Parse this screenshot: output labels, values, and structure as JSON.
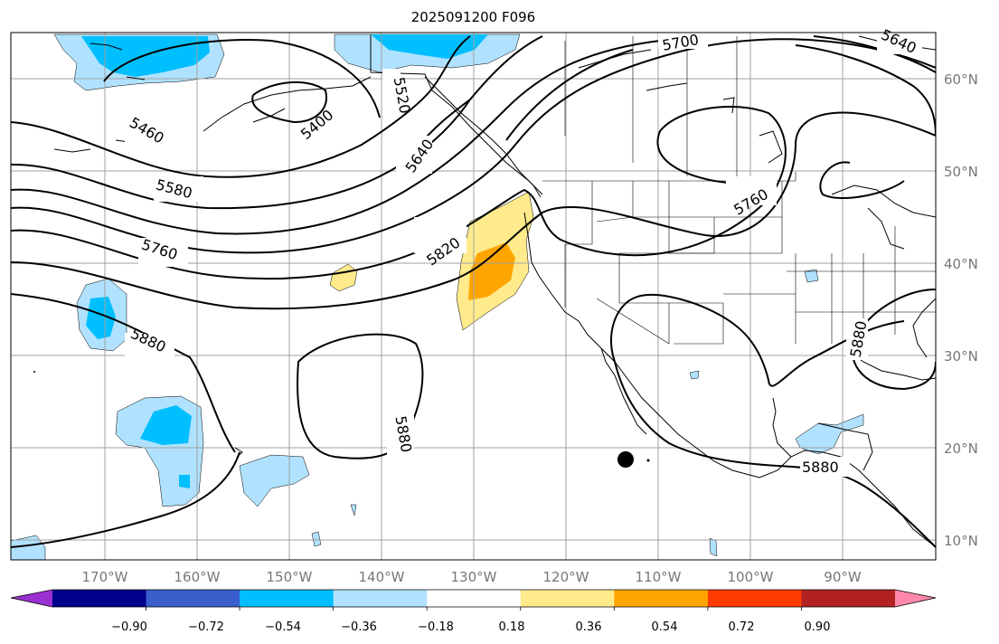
{
  "title": "2025091200 F096",
  "lat_labels": [
    "60°N",
    "50°N",
    "40°N",
    "30°N",
    "20°N",
    "10°N"
  ],
  "lon_labels": [
    "170°W",
    "160°W",
    "150°W",
    "140°W",
    "130°W",
    "120°W",
    "110°W",
    "100°W",
    "90°W"
  ],
  "contour_labels": [
    "5700",
    "5640",
    "5400",
    "5520",
    "5460",
    "5640",
    "5580",
    "5760",
    "5820",
    "5760",
    "5880",
    "5880",
    "5880",
    "5880"
  ],
  "colorbar": {
    "colors": [
      "#9b30d0",
      "#00008b",
      "#3a5fcd",
      "#00bfff",
      "#b0e2ff",
      "#ffffff",
      "#ffeb8c",
      "#ffa500",
      "#ff3c00",
      "#b22222",
      "#ff88aa"
    ],
    "tick_labels": [
      "−0.90",
      "−0.72",
      "−0.54",
      "−0.36",
      "−0.18",
      "0.18",
      "0.36",
      "0.54",
      "0.72",
      "0.90"
    ]
  }
}
